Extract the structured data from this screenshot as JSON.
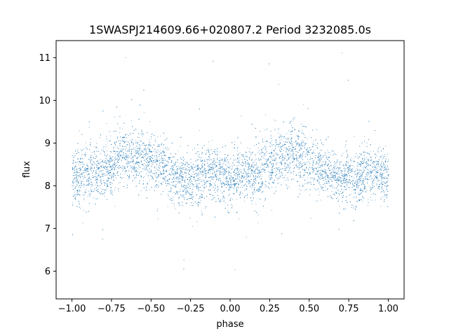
{
  "chart_data": {
    "type": "scatter",
    "title": "1SWASPJ214609.66+020807.2 Period 3232085.0s",
    "xlabel": "phase",
    "ylabel": "flux",
    "xlim": [
      -1.1,
      1.1
    ],
    "ylim": [
      5.35,
      11.4
    ],
    "xticks": [
      -1.0,
      -0.75,
      -0.5,
      -0.25,
      0.0,
      0.25,
      0.5,
      0.75,
      1.0
    ],
    "xtick_labels": [
      "−1.00",
      "−0.75",
      "−0.50",
      "−0.25",
      "0.00",
      "0.25",
      "0.50",
      "0.75",
      "1.00"
    ],
    "yticks": [
      6,
      7,
      8,
      9,
      10,
      11
    ],
    "ytick_labels": [
      "6",
      "7",
      "8",
      "9",
      "10",
      "11"
    ],
    "grid": false,
    "marker_color": "#1f77b4",
    "series": [
      {
        "name": "",
        "phase_profile": {
          "x": [
            -1.0,
            -0.9,
            -0.8,
            -0.7,
            -0.6,
            -0.5,
            -0.4,
            -0.3,
            -0.2,
            -0.1,
            0.0,
            0.1,
            0.2,
            0.3,
            0.4,
            0.5,
            0.6,
            0.7,
            0.8,
            0.9,
            1.0
          ],
          "median_flux": [
            8.2,
            8.25,
            8.35,
            8.7,
            8.75,
            8.6,
            8.35,
            8.15,
            8.2,
            8.3,
            8.2,
            8.25,
            8.35,
            8.7,
            8.75,
            8.6,
            8.35,
            8.15,
            8.2,
            8.3,
            8.2
          ],
          "spread": [
            0.6,
            0.6,
            0.65,
            0.6,
            0.6,
            0.6,
            0.55,
            0.55,
            0.6,
            0.55,
            0.6,
            0.6,
            0.65,
            0.6,
            0.6,
            0.6,
            0.55,
            0.55,
            0.6,
            0.55,
            0.6
          ]
        },
        "approx_points": 30000
      }
    ]
  }
}
